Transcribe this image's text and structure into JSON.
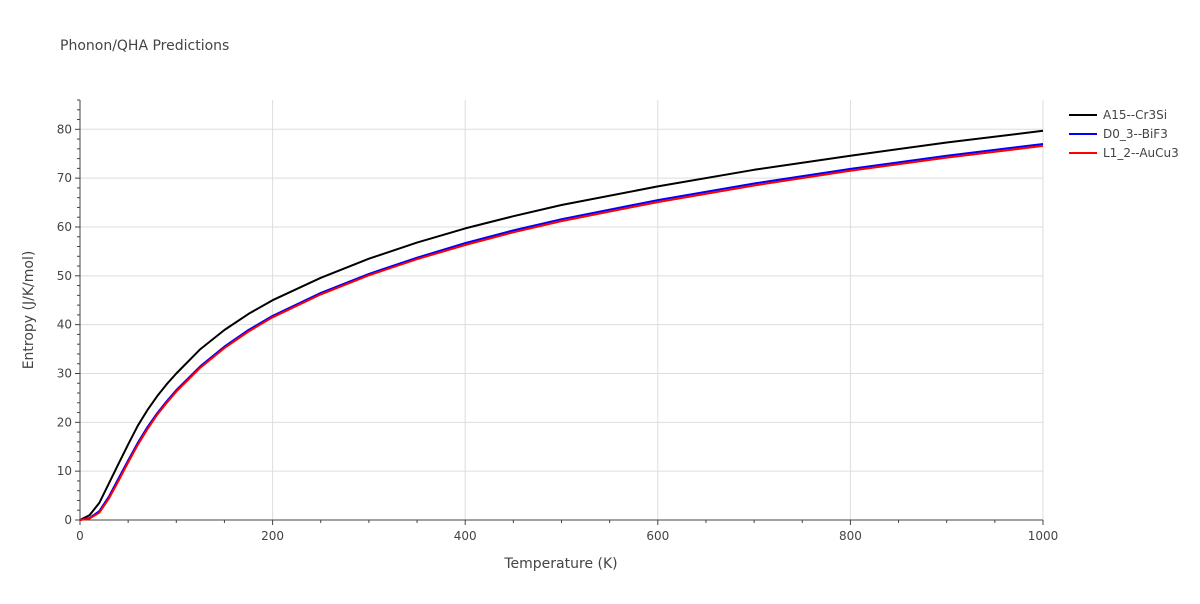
{
  "chart_data": {
    "type": "line",
    "title": "Phonon/QHA Predictions",
    "xlabel": "Temperature (K)",
    "ylabel": "Entropy (J/K/mol)",
    "xlim": [
      0,
      1000
    ],
    "ylim": [
      0,
      86
    ],
    "xticks": [
      0,
      200,
      400,
      600,
      800,
      1000
    ],
    "yticks": [
      0,
      10,
      20,
      30,
      40,
      50,
      60,
      70,
      80
    ],
    "grid": true,
    "legend_position": "top-right",
    "series": [
      {
        "name": "A15--Cr3Si",
        "color": "#000000",
        "x": [
          0,
          10,
          20,
          30,
          40,
          50,
          60,
          70,
          80,
          90,
          100,
          125,
          150,
          175,
          200,
          250,
          300,
          350,
          400,
          450,
          500,
          600,
          700,
          800,
          900,
          1000
        ],
        "y": [
          0,
          1,
          3.5,
          7.5,
          11.5,
          15.5,
          19.3,
          22.5,
          25.3,
          27.8,
          30.0,
          35.0,
          38.9,
          42.2,
          45.0,
          49.6,
          53.5,
          56.8,
          59.7,
          62.2,
          64.5,
          68.3,
          71.7,
          74.6,
          77.3,
          79.7
        ]
      },
      {
        "name": "D0_3--BiF3",
        "color": "#0000ff",
        "x": [
          0,
          10,
          20,
          30,
          40,
          50,
          60,
          70,
          80,
          90,
          100,
          125,
          150,
          175,
          200,
          250,
          300,
          350,
          400,
          450,
          500,
          600,
          700,
          800,
          900,
          1000
        ],
        "y": [
          0,
          0.4,
          1.8,
          4.8,
          8.5,
          12.2,
          15.8,
          19.0,
          21.8,
          24.3,
          26.6,
          31.5,
          35.5,
          38.9,
          41.8,
          46.5,
          50.4,
          53.7,
          56.7,
          59.3,
          61.6,
          65.5,
          68.9,
          71.9,
          74.6,
          77.0
        ]
      },
      {
        "name": "L1_2--AuCu3",
        "color": "#ff0000",
        "x": [
          0,
          10,
          20,
          30,
          40,
          50,
          60,
          70,
          80,
          90,
          100,
          125,
          150,
          175,
          200,
          250,
          300,
          350,
          400,
          450,
          500,
          600,
          700,
          800,
          900,
          1000
        ],
        "y": [
          0,
          0.3,
          1.5,
          4.4,
          8.0,
          11.8,
          15.4,
          18.6,
          21.5,
          24.0,
          26.3,
          31.2,
          35.2,
          38.6,
          41.5,
          46.2,
          50.1,
          53.4,
          56.3,
          58.9,
          61.2,
          65.1,
          68.5,
          71.5,
          74.2,
          76.6
        ]
      }
    ]
  }
}
